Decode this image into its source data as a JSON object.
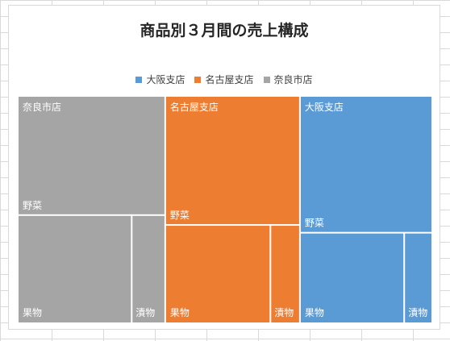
{
  "chart_data": {
    "type": "treemap",
    "title": "商品別３月間の売上構成",
    "legend_position": "top",
    "categories": [
      "野菜",
      "果物",
      "漬物"
    ],
    "series": [
      {
        "name": "大阪支店",
        "color": "#5b9bd5",
        "values": {
          "野菜": 100,
          "果物": 52,
          "漬物": 14
        }
      },
      {
        "name": "名古屋支店",
        "color": "#ed7d31",
        "values": {
          "野菜": 96,
          "果物": 57,
          "漬物": 16
        }
      },
      {
        "name": "奈良市店",
        "color": "#a5a5a5",
        "values": {
          "野菜": 97,
          "果物": 68,
          "漬物": 20
        }
      }
    ]
  },
  "legend": [
    {
      "label": "大阪支店",
      "color": "#5b9bd5"
    },
    {
      "label": "名古屋支店",
      "color": "#ed7d31"
    },
    {
      "label": "奈良市店",
      "color": "#a5a5a5"
    }
  ]
}
